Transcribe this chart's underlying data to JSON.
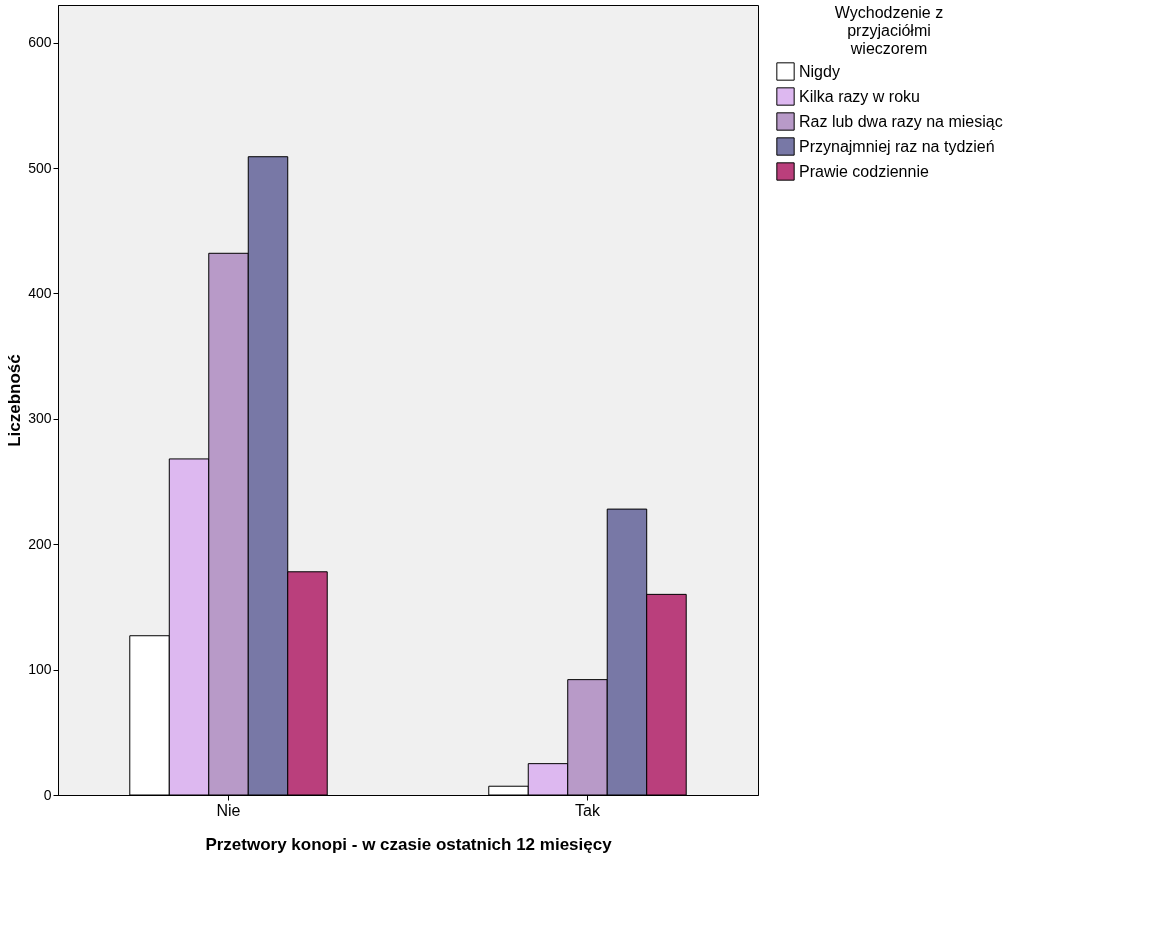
{
  "chart_data": {
    "type": "bar",
    "xlabel": "Przetwory konopi - w czasie ostatnich 12 miesięcy",
    "ylabel": "Liczebność",
    "legend_title": "Wychodzenie z przyjaciółmi wieczorem",
    "categories": [
      "Nie",
      "Tak"
    ],
    "series": [
      {
        "name": "Nigdy",
        "color": "#ffffff",
        "values": [
          127,
          7
        ]
      },
      {
        "name": "Kilka razy w roku",
        "color": "#ddb8f0",
        "values": [
          268,
          25
        ]
      },
      {
        "name": "Raz lub dwa razy na miesiąc",
        "color": "#b89ac8",
        "values": [
          432,
          92
        ]
      },
      {
        "name": "Przynajmniej raz na tydzień",
        "color": "#7878a6",
        "values": [
          509,
          228
        ]
      },
      {
        "name": "Prawie codziennie",
        "color": "#ba3f7c",
        "values": [
          178,
          160
        ]
      }
    ],
    "ylim": [
      0,
      630
    ],
    "yticks": [
      0,
      100,
      200,
      300,
      400,
      500,
      600
    ],
    "grid": false,
    "legend": "right"
  }
}
